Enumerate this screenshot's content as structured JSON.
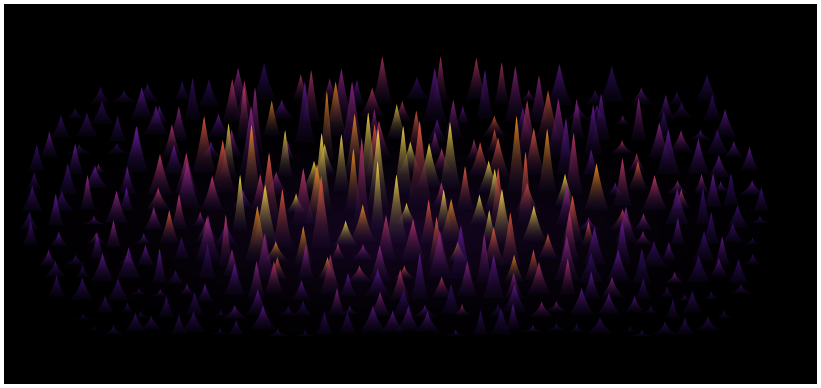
{
  "image": {
    "subject": "3d-surface-peaks",
    "background_color": "#000000",
    "border_color": "#ffffff",
    "palette": [
      "#1a0a3a",
      "#3b0f70",
      "#6a1c9a",
      "#9c2a8a",
      "#c83b6a",
      "#ee5f3c",
      "#f7931e",
      "#fde047"
    ]
  }
}
